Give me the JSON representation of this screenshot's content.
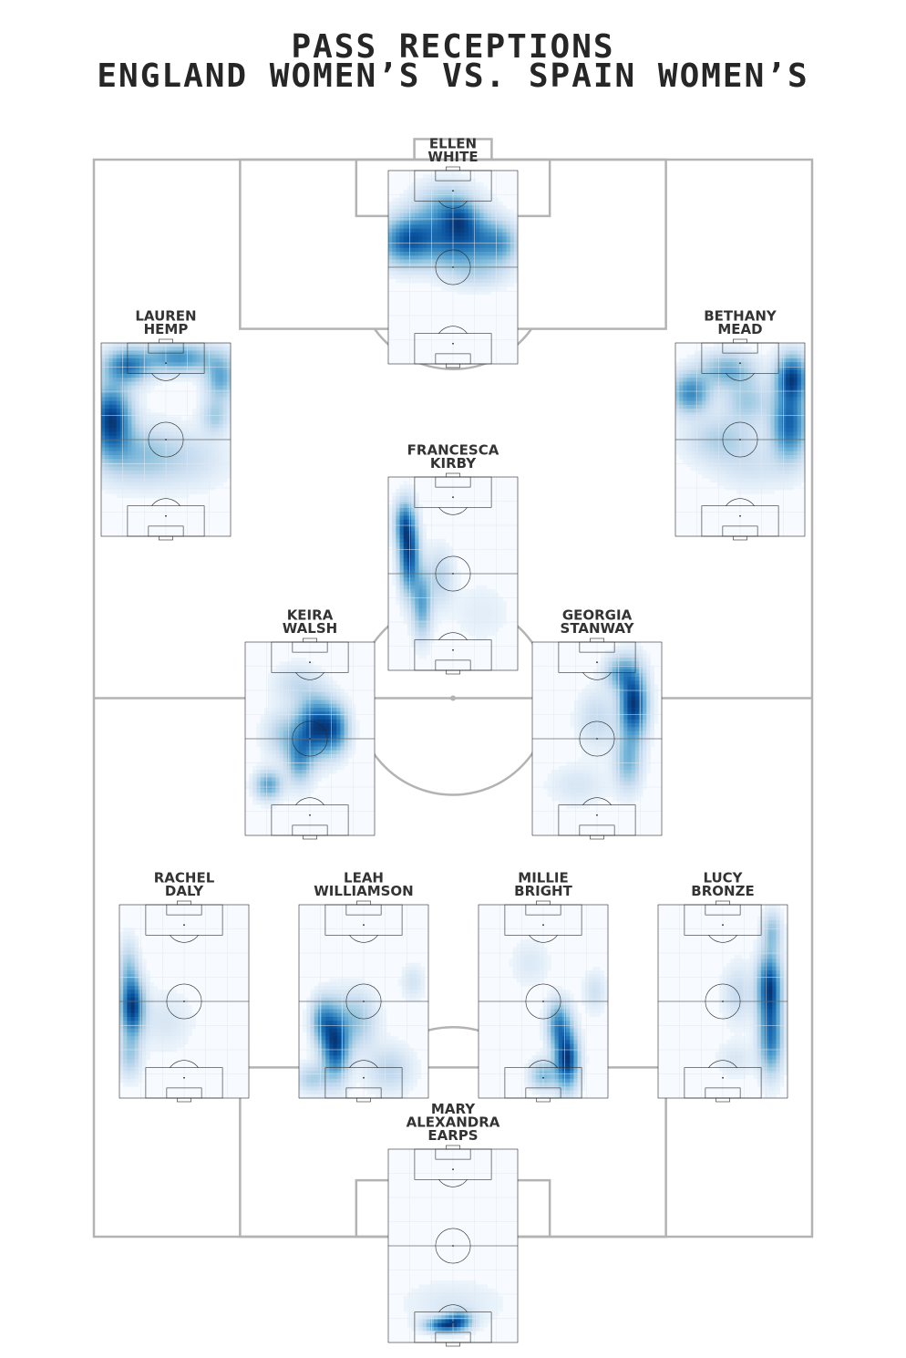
{
  "title": {
    "line1": "PASS RECEPTIONS",
    "line2": "ENGLAND WOMEN’S VS. SPAIN WOMEN’S"
  },
  "colors": {
    "pitch_lines": "#b3b3b3",
    "heat_low": "#f7fbff",
    "heat_high": "#08519c",
    "text": "#333333"
  },
  "chart_data": {
    "type": "heatmap",
    "layout": "team formation on a full pitch with one mini-pitch heatmap per player",
    "players": [
      {
        "key": "white",
        "name_lines": [
          "ELLEN",
          "WHITE"
        ],
        "zones": [
          {
            "x": 0.1,
            "y": 0.37,
            "sx": 0.12,
            "sy": 0.08,
            "w": 0.9
          },
          {
            "x": 0.25,
            "y": 0.34,
            "sx": 0.12,
            "sy": 0.09,
            "w": 0.8
          },
          {
            "x": 0.5,
            "y": 0.37,
            "sx": 0.13,
            "sy": 0.09,
            "w": 1.0
          },
          {
            "x": 0.72,
            "y": 0.36,
            "sx": 0.12,
            "sy": 0.09,
            "w": 0.75
          },
          {
            "x": 0.88,
            "y": 0.38,
            "sx": 0.09,
            "sy": 0.07,
            "w": 0.6
          },
          {
            "x": 0.45,
            "y": 0.18,
            "sx": 0.15,
            "sy": 0.08,
            "w": 0.55
          },
          {
            "x": 0.55,
            "y": 0.25,
            "sx": 0.1,
            "sy": 0.06,
            "w": 0.7
          },
          {
            "x": 0.7,
            "y": 0.54,
            "sx": 0.16,
            "sy": 0.05,
            "w": 0.25
          }
        ]
      },
      {
        "key": "hemp",
        "name_lines": [
          "LAUREN",
          "HEMP"
        ],
        "zones": [
          {
            "x": 0.08,
            "y": 0.4,
            "sx": 0.1,
            "sy": 0.12,
            "w": 1.0
          },
          {
            "x": 0.2,
            "y": 0.12,
            "sx": 0.12,
            "sy": 0.06,
            "w": 0.7
          },
          {
            "x": 0.6,
            "y": 0.08,
            "sx": 0.18,
            "sy": 0.05,
            "w": 0.6
          },
          {
            "x": 0.92,
            "y": 0.18,
            "sx": 0.08,
            "sy": 0.08,
            "w": 0.5
          },
          {
            "x": 0.88,
            "y": 0.38,
            "sx": 0.07,
            "sy": 0.06,
            "w": 0.3
          },
          {
            "x": 0.3,
            "y": 0.58,
            "sx": 0.2,
            "sy": 0.1,
            "w": 0.35
          },
          {
            "x": 0.7,
            "y": 0.6,
            "sx": 0.2,
            "sy": 0.1,
            "w": 0.15
          }
        ]
      },
      {
        "key": "mead",
        "name_lines": [
          "BETHANY",
          "MEAD"
        ],
        "zones": [
          {
            "x": 0.9,
            "y": 0.18,
            "sx": 0.08,
            "sy": 0.08,
            "w": 1.0
          },
          {
            "x": 0.88,
            "y": 0.42,
            "sx": 0.09,
            "sy": 0.12,
            "w": 0.9
          },
          {
            "x": 0.12,
            "y": 0.26,
            "sx": 0.1,
            "sy": 0.07,
            "w": 0.7
          },
          {
            "x": 0.4,
            "y": 0.14,
            "sx": 0.14,
            "sy": 0.06,
            "w": 0.5
          },
          {
            "x": 0.55,
            "y": 0.3,
            "sx": 0.12,
            "sy": 0.08,
            "w": 0.35
          },
          {
            "x": 0.35,
            "y": 0.5,
            "sx": 0.18,
            "sy": 0.08,
            "w": 0.3
          },
          {
            "x": 0.6,
            "y": 0.64,
            "sx": 0.2,
            "sy": 0.08,
            "w": 0.15
          }
        ]
      },
      {
        "key": "kirby",
        "name_lines": [
          "FRANCESCA",
          "KIRBY"
        ],
        "zones": [
          {
            "x": 0.16,
            "y": 0.4,
            "sx": 0.05,
            "sy": 0.13,
            "w": 1.0
          },
          {
            "x": 0.12,
            "y": 0.24,
            "sx": 0.05,
            "sy": 0.08,
            "w": 0.6
          },
          {
            "x": 0.26,
            "y": 0.65,
            "sx": 0.05,
            "sy": 0.12,
            "w": 0.55
          },
          {
            "x": 0.4,
            "y": 0.52,
            "sx": 0.07,
            "sy": 0.1,
            "w": 0.25
          },
          {
            "x": 0.72,
            "y": 0.7,
            "sx": 0.15,
            "sy": 0.1,
            "w": 0.08
          }
        ]
      },
      {
        "key": "walsh",
        "name_lines": [
          "KEIRA",
          "WALSH"
        ],
        "zones": [
          {
            "x": 0.55,
            "y": 0.44,
            "sx": 0.1,
            "sy": 0.1,
            "w": 1.0
          },
          {
            "x": 0.7,
            "y": 0.45,
            "sx": 0.07,
            "sy": 0.08,
            "w": 0.6
          },
          {
            "x": 0.42,
            "y": 0.6,
            "sx": 0.07,
            "sy": 0.09,
            "w": 0.55
          },
          {
            "x": 0.18,
            "y": 0.74,
            "sx": 0.07,
            "sy": 0.05,
            "w": 0.55
          },
          {
            "x": 0.4,
            "y": 0.22,
            "sx": 0.12,
            "sy": 0.07,
            "w": 0.2
          },
          {
            "x": 0.3,
            "y": 0.48,
            "sx": 0.1,
            "sy": 0.08,
            "w": 0.3
          }
        ]
      },
      {
        "key": "stanway",
        "name_lines": [
          "GEORGIA",
          "STANWAY"
        ],
        "zones": [
          {
            "x": 0.78,
            "y": 0.32,
            "sx": 0.07,
            "sy": 0.12,
            "w": 1.0
          },
          {
            "x": 0.68,
            "y": 0.16,
            "sx": 0.08,
            "sy": 0.06,
            "w": 0.45
          },
          {
            "x": 0.74,
            "y": 0.62,
            "sx": 0.07,
            "sy": 0.1,
            "w": 0.4
          },
          {
            "x": 0.5,
            "y": 0.4,
            "sx": 0.1,
            "sy": 0.1,
            "w": 0.2
          },
          {
            "x": 0.35,
            "y": 0.74,
            "sx": 0.15,
            "sy": 0.07,
            "w": 0.12
          }
        ]
      },
      {
        "key": "daly",
        "name_lines": [
          "RACHEL",
          "DALY"
        ],
        "zones": [
          {
            "x": 0.1,
            "y": 0.53,
            "sx": 0.06,
            "sy": 0.1,
            "w": 1.0
          },
          {
            "x": 0.07,
            "y": 0.33,
            "sx": 0.05,
            "sy": 0.1,
            "w": 0.3
          },
          {
            "x": 0.08,
            "y": 0.78,
            "sx": 0.06,
            "sy": 0.08,
            "w": 0.3
          },
          {
            "x": 0.35,
            "y": 0.6,
            "sx": 0.14,
            "sy": 0.1,
            "w": 0.12
          }
        ]
      },
      {
        "key": "williamson",
        "name_lines": [
          "LEAH",
          "WILLIAMSON"
        ],
        "zones": [
          {
            "x": 0.28,
            "y": 0.72,
            "sx": 0.07,
            "sy": 0.12,
            "w": 1.0
          },
          {
            "x": 0.18,
            "y": 0.6,
            "sx": 0.06,
            "sy": 0.08,
            "w": 0.55
          },
          {
            "x": 0.45,
            "y": 0.6,
            "sx": 0.1,
            "sy": 0.1,
            "w": 0.35
          },
          {
            "x": 0.7,
            "y": 0.85,
            "sx": 0.12,
            "sy": 0.08,
            "w": 0.25
          },
          {
            "x": 0.88,
            "y": 0.4,
            "sx": 0.06,
            "sy": 0.06,
            "w": 0.15
          },
          {
            "x": 0.1,
            "y": 0.9,
            "sx": 0.08,
            "sy": 0.05,
            "w": 0.3
          }
        ]
      },
      {
        "key": "bright",
        "name_lines": [
          "MILLIE",
          "BRIGHT"
        ],
        "zones": [
          {
            "x": 0.68,
            "y": 0.8,
            "sx": 0.06,
            "sy": 0.1,
            "w": 1.0
          },
          {
            "x": 0.62,
            "y": 0.62,
            "sx": 0.06,
            "sy": 0.08,
            "w": 0.6
          },
          {
            "x": 0.5,
            "y": 0.88,
            "sx": 0.07,
            "sy": 0.05,
            "w": 0.4
          },
          {
            "x": 0.9,
            "y": 0.45,
            "sx": 0.06,
            "sy": 0.07,
            "w": 0.15
          },
          {
            "x": 0.4,
            "y": 0.3,
            "sx": 0.1,
            "sy": 0.08,
            "w": 0.1
          }
        ]
      },
      {
        "key": "bronze",
        "name_lines": [
          "LUCY",
          "BRONZE"
        ],
        "zones": [
          {
            "x": 0.86,
            "y": 0.43,
            "sx": 0.06,
            "sy": 0.12,
            "w": 1.0
          },
          {
            "x": 0.87,
            "y": 0.7,
            "sx": 0.06,
            "sy": 0.12,
            "w": 0.7
          },
          {
            "x": 0.88,
            "y": 0.14,
            "sx": 0.05,
            "sy": 0.07,
            "w": 0.35
          },
          {
            "x": 0.62,
            "y": 0.46,
            "sx": 0.08,
            "sy": 0.1,
            "w": 0.2
          },
          {
            "x": 0.6,
            "y": 0.8,
            "sx": 0.1,
            "sy": 0.06,
            "w": 0.12
          }
        ]
      },
      {
        "key": "earps",
        "name_lines": [
          "MARY",
          "ALEXANDRA",
          "EARPS"
        ],
        "zones": [
          {
            "x": 0.44,
            "y": 0.91,
            "sx": 0.1,
            "sy": 0.025,
            "w": 1.0
          },
          {
            "x": 0.55,
            "y": 0.88,
            "sx": 0.07,
            "sy": 0.03,
            "w": 0.6
          },
          {
            "x": 0.5,
            "y": 0.8,
            "sx": 0.25,
            "sy": 0.08,
            "w": 0.12
          }
        ]
      }
    ]
  }
}
